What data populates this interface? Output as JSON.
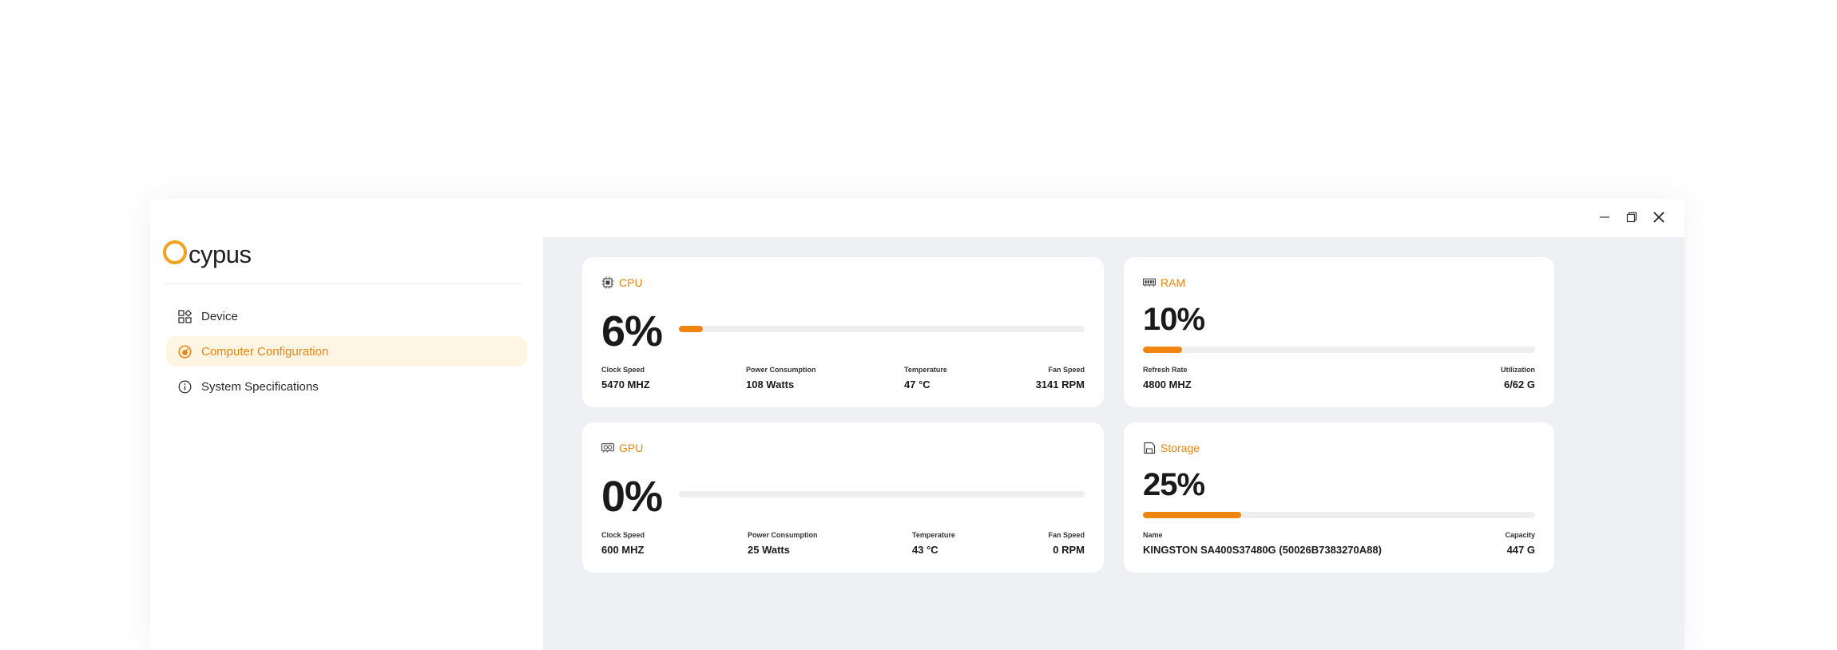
{
  "app": {
    "logo_text": "cypus"
  },
  "window_controls": {
    "minimize": "minimize-icon",
    "restore": "restore-icon",
    "close": "close-icon"
  },
  "sidebar": {
    "items": [
      {
        "label": "Device",
        "icon": "grid-icon",
        "active": false
      },
      {
        "label": "Computer Configuration",
        "icon": "gauge-icon",
        "active": true
      },
      {
        "label": "System Specifications",
        "icon": "info-icon",
        "active": false
      }
    ]
  },
  "colors": {
    "accent": "#ee8510",
    "active_bg": "#fff5e2",
    "logo_ring": "#f0a320",
    "main_bg": "#eef0f3"
  },
  "cards": {
    "cpu": {
      "title": "CPU",
      "icon": "cpu-icon",
      "percent_text": "6%",
      "usage_fraction": 0.06,
      "stats": [
        {
          "label": "Clock Speed",
          "value": "5470 MHZ"
        },
        {
          "label": "Power Consumption",
          "value": "108 Watts"
        },
        {
          "label": "Temperature",
          "value": "47 °C"
        },
        {
          "label": "Fan Speed",
          "value": "3141 RPM"
        }
      ]
    },
    "ram": {
      "title": "RAM",
      "icon": "ram-icon",
      "percent_text": "10%",
      "usage_fraction": 0.1,
      "stats": [
        {
          "label": "Refresh Rate",
          "value": "4800 MHZ"
        },
        {
          "label": "Utilization",
          "value": "6/62 G"
        }
      ]
    },
    "gpu": {
      "title": "GPU",
      "icon": "gpu-icon",
      "percent_text": "0%",
      "usage_fraction": 0.0,
      "stats": [
        {
          "label": "Clock Speed",
          "value": "600 MHZ"
        },
        {
          "label": "Power Consumption",
          "value": "25 Watts"
        },
        {
          "label": "Temperature",
          "value": "43 °C"
        },
        {
          "label": "Fan Speed",
          "value": "0 RPM"
        }
      ]
    },
    "storage": {
      "title": "Storage",
      "icon": "storage-icon",
      "percent_text": "25%",
      "usage_fraction": 0.25,
      "stats": [
        {
          "label": "Name",
          "value": "KINGSTON SA400S37480G (50026B7383270A88)"
        },
        {
          "label": "Capacity",
          "value": "447 G"
        }
      ]
    }
  }
}
